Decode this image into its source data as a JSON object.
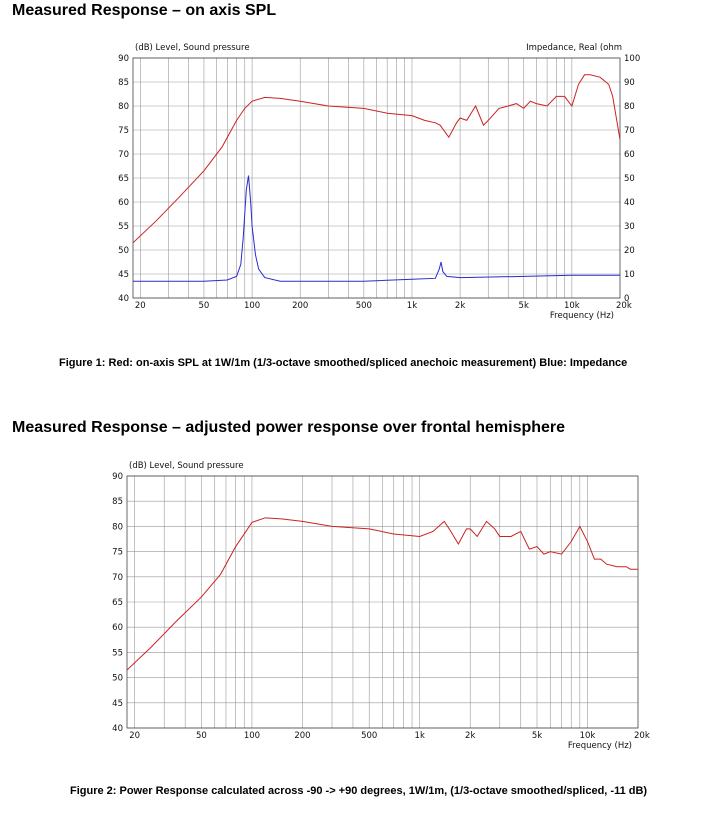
{
  "headings": {
    "section1": "Measured Response – on axis SPL",
    "section2": "Measured Response – adjusted power response over frontal hemisphere"
  },
  "captions": {
    "figure1": "Figure 1: Red: on-axis SPL at 1W/1m (1/3-octave smoothed/spliced anechoic measurement) Blue: Impedance",
    "figure2": "Figure 2: Power Response calculated across -90 -> +90 degrees, 1W/1m, (1/3-octave smoothed/spliced, -11 dB)"
  },
  "colors": {
    "spl": "#cc2222",
    "impedance": "#2b2bd0",
    "grid": "#999999",
    "frame": "#444444"
  },
  "chart_data": [
    {
      "type": "line",
      "ylabel": "(dB)  Level, Sound pressure",
      "y2label": "Impedance, Real  (ohm",
      "xlabel": "Frequency   (Hz)",
      "x_scale": "log",
      "xlim": [
        18,
        20000
      ],
      "ylim": [
        40,
        90
      ],
      "y2lim": [
        0,
        100
      ],
      "grid": true,
      "x_ticks": [
        {
          "value": 20,
          "label": "20"
        },
        {
          "value": 50,
          "label": "50"
        },
        {
          "value": 100,
          "label": "100"
        },
        {
          "value": 200,
          "label": "200"
        },
        {
          "value": 500,
          "label": "500"
        },
        {
          "value": 1000,
          "label": "1k"
        },
        {
          "value": 2000,
          "label": "2k"
        },
        {
          "value": 5000,
          "label": "5k"
        },
        {
          "value": 10000,
          "label": "10k"
        },
        {
          "value": 20000,
          "label": "20k"
        }
      ],
      "y_ticks": [
        "40",
        "45",
        "50",
        "55",
        "60",
        "65",
        "70",
        "75",
        "80",
        "85",
        "90"
      ],
      "y2_ticks": [
        "0",
        "10",
        "20",
        "30",
        "40",
        "50",
        "60",
        "70",
        "80",
        "90",
        "100"
      ],
      "series": [
        {
          "axis": "left",
          "color": "#cc2222",
          "x": [
            18,
            25,
            35,
            50,
            65,
            80,
            90,
            100,
            120,
            150,
            200,
            300,
            500,
            700,
            1000,
            1200,
            1400,
            1500,
            1700,
            1900,
            2000,
            2200,
            2500,
            2800,
            3000,
            3500,
            4000,
            4500,
            5000,
            5500,
            6000,
            7000,
            8000,
            9000,
            10000,
            11000,
            12000,
            13000,
            15000,
            17000,
            18000,
            20000
          ],
          "y": [
            51.5,
            56,
            61,
            66.5,
            71.5,
            77,
            79.5,
            81,
            81.8,
            81.6,
            81,
            80,
            79.5,
            78.5,
            78,
            77,
            76.5,
            76,
            73.5,
            76.5,
            77.5,
            77,
            80,
            76,
            77,
            79.5,
            80,
            80.5,
            79.5,
            81,
            80.5,
            80,
            82,
            82,
            80,
            84.5,
            86.5,
            86.5,
            86,
            84.5,
            82,
            73
          ]
        },
        {
          "axis": "right",
          "color": "#2b2bd0",
          "x": [
            18,
            50,
            70,
            80,
            85,
            88,
            92,
            95,
            98,
            100,
            105,
            110,
            120,
            150,
            200,
            500,
            1000,
            1400,
            1480,
            1520,
            1560,
            1650,
            2000,
            5000,
            10000,
            20000
          ],
          "y": [
            7,
            7,
            7.5,
            9,
            14,
            25,
            45,
            51,
            40,
            30,
            18,
            12,
            8.5,
            7,
            7,
            7,
            7.8,
            8.2,
            12,
            15,
            11,
            9,
            8.5,
            9,
            9.5,
            9.5
          ]
        }
      ]
    },
    {
      "type": "line",
      "ylabel": "(dB)  Level, Sound pressure",
      "xlabel": "Frequency   (Hz)",
      "x_scale": "log",
      "xlim": [
        18,
        20000
      ],
      "ylim": [
        40,
        90
      ],
      "grid": true,
      "x_ticks": [
        {
          "value": 20,
          "label": "20"
        },
        {
          "value": 50,
          "label": "50"
        },
        {
          "value": 100,
          "label": "100"
        },
        {
          "value": 200,
          "label": "200"
        },
        {
          "value": 500,
          "label": "500"
        },
        {
          "value": 1000,
          "label": "1k"
        },
        {
          "value": 2000,
          "label": "2k"
        },
        {
          "value": 5000,
          "label": "5k"
        },
        {
          "value": 10000,
          "label": "10k"
        },
        {
          "value": 20000,
          "label": "20k"
        }
      ],
      "y_ticks": [
        "40",
        "45",
        "50",
        "55",
        "60",
        "65",
        "70",
        "75",
        "80",
        "85",
        "90"
      ],
      "series": [
        {
          "axis": "left",
          "color": "#cc2222",
          "x": [
            18,
            25,
            35,
            50,
            65,
            80,
            90,
            100,
            120,
            150,
            200,
            300,
            500,
            700,
            1000,
            1200,
            1400,
            1500,
            1700,
            1900,
            2000,
            2200,
            2500,
            2800,
            3000,
            3500,
            4000,
            4500,
            5000,
            5500,
            6000,
            7000,
            8000,
            9000,
            10000,
            11000,
            12000,
            13000,
            15000,
            17000,
            18000,
            20000
          ],
          "y": [
            51.5,
            56,
            61,
            66,
            70.5,
            76,
            78.5,
            80.8,
            81.7,
            81.5,
            81,
            80,
            79.5,
            78.5,
            78,
            79,
            81,
            79.5,
            76.5,
            79.5,
            79.5,
            78,
            81,
            79.5,
            78,
            78,
            79,
            75.5,
            76,
            74.5,
            75,
            74.5,
            77,
            80,
            77,
            73.5,
            73.5,
            72.5,
            72,
            72,
            71.5,
            71.5
          ]
        }
      ]
    }
  ]
}
